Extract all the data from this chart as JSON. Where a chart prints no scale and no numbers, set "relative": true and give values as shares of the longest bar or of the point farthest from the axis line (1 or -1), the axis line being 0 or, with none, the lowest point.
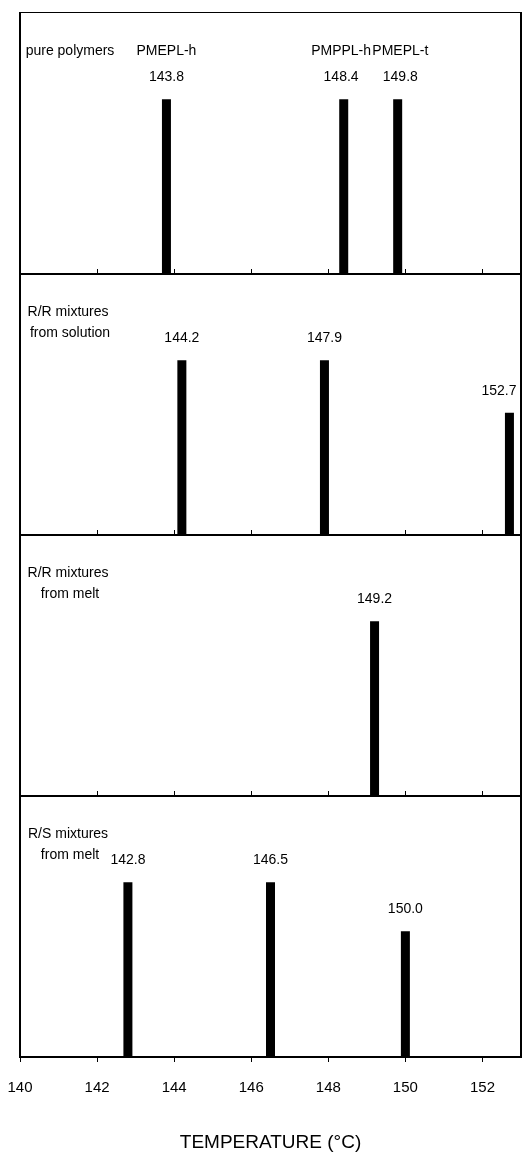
{
  "chart_data": [
    {
      "type": "bar",
      "title": "pure polymers",
      "x": [
        143.8,
        148.4,
        149.8
      ],
      "values": [
        1,
        1,
        1
      ],
      "color": "#000000",
      "relative": true,
      "annotations": [
        {
          "text": "PMEPL-h",
          "x": 143.8,
          "y": 1
        },
        {
          "text": "143.8",
          "x": 143.8,
          "y": 1
        },
        {
          "text": "PMPPL-h",
          "x": 148.4,
          "y": 1
        },
        {
          "text": "148.4",
          "x": 148.4,
          "y": 1
        },
        {
          "text": "PMEPL-t",
          "x": 149.8,
          "y": 1
        },
        {
          "text": "149.8",
          "x": 149.8,
          "y": 1
        }
      ],
      "xlim": [
        140,
        153
      ],
      "xticks": [
        140,
        142,
        144,
        146,
        148,
        150,
        152
      ],
      "tick_labels": false,
      "grid": false
    },
    {
      "type": "bar",
      "title": "R/R mixtures from solution",
      "x": [
        144.2,
        147.9,
        152.7
      ],
      "values": [
        1,
        1,
        0.7
      ],
      "color": "#000000",
      "relative": true,
      "annotations": [
        {
          "text": "144.2",
          "x": 144.2,
          "y": 1
        },
        {
          "text": "147.9",
          "x": 147.9,
          "y": 1
        },
        {
          "text": "152.7",
          "x": 152.7,
          "y": 0.7
        }
      ],
      "xlim": [
        140,
        153
      ],
      "xticks": [
        140,
        142,
        144,
        146,
        148,
        150,
        152
      ],
      "tick_labels": false,
      "grid": false
    },
    {
      "type": "bar",
      "title": "R/R mixtures from melt",
      "x": [
        149.2
      ],
      "values": [
        1
      ],
      "color": "#000000",
      "relative": true,
      "annotations": [
        {
          "text": "149.2",
          "x": 149.2,
          "y": 1
        }
      ],
      "xlim": [
        140,
        153
      ],
      "xticks": [
        140,
        142,
        144,
        146,
        148,
        150,
        152
      ],
      "tick_labels": false,
      "grid": false
    },
    {
      "type": "bar",
      "title": "R/S mixtures from melt",
      "x": [
        142.8,
        146.5,
        150.0
      ],
      "values": [
        1,
        1,
        0.72
      ],
      "color": "#000000",
      "relative": true,
      "annotations": [
        {
          "text": "142.8",
          "x": 142.8,
          "y": 1
        },
        {
          "text": "146.5",
          "x": 146.5,
          "y": 1
        },
        {
          "text": "150.0",
          "x": 150.0,
          "y": 0.72
        }
      ],
      "xlabel": "TEMPERATURE (°C)",
      "xlim": [
        140,
        153
      ],
      "xticks": [
        140,
        142,
        144,
        146,
        148,
        150,
        152
      ],
      "tick_labels": "x",
      "grid": false
    }
  ]
}
